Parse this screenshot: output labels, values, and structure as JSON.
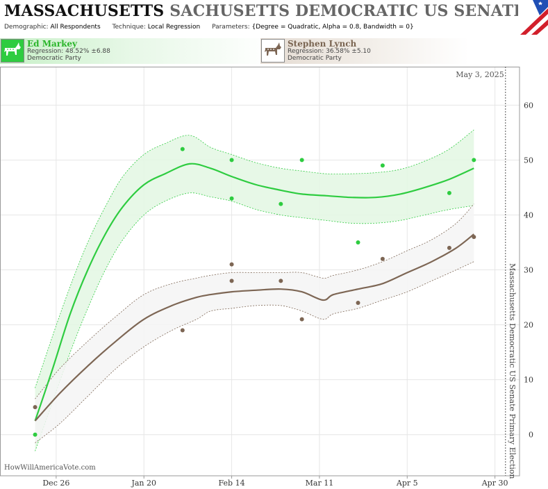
{
  "header": {
    "title_part1": "MASSACHUSETTS",
    "title_part2": "SACHUSETTS DEMOCRATIC US SENATE PRIM",
    "meta": {
      "demographic_label": "Demographic:",
      "demographic_value": "All Respondents",
      "technique_label": "Technique:",
      "technique_value": "Local Regression",
      "parameters_label": "Parameters:",
      "parameters_value": "{Degree = Quadratic, Alpha = 0.8, Bandwidth = 0}"
    }
  },
  "candidates": [
    {
      "name": "Ed Markey",
      "regression": "Regression: 48.52% ±6.88",
      "party": "Democratic Party",
      "color": "#2ecc40",
      "icon": "donkey-icon"
    },
    {
      "name": "Stephen Lynch",
      "regression": "Regression: 36.58% ±5.10",
      "party": "Democratic Party",
      "color": "#7d6654",
      "icon": "donkey-icon"
    }
  ],
  "footer": {
    "site": "HowWillAmericaVote.com"
  },
  "chart_data": {
    "type": "scatter",
    "date_label": "May 3, 2025",
    "right_axis_label": "Massachusetts Democratic US Senate Primary Election",
    "x_ticks": [
      {
        "label": "Dec 26",
        "date": "2024-12-26"
      },
      {
        "label": "Jan 20",
        "date": "2025-01-20"
      },
      {
        "label": "Feb 14",
        "date": "2025-02-14"
      },
      {
        "label": "Mar 11",
        "date": "2025-03-11"
      },
      {
        "label": "Apr 5",
        "date": "2025-04-05"
      },
      {
        "label": "Apr 30",
        "date": "2025-04-30"
      }
    ],
    "x_range": [
      "2024-12-10",
      "2025-05-07"
    ],
    "election_date": "2025-05-03",
    "y_ticks": [
      0,
      10,
      20,
      30,
      40,
      50,
      60
    ],
    "ylim": [
      -7.5,
      67
    ],
    "grid": true,
    "series": [
      {
        "name": "Ed Markey",
        "color": "#2ecc40",
        "band_color": "#e3f7e3",
        "points": [
          {
            "x": "2024-12-20",
            "y": 0
          },
          {
            "x": "2025-01-31",
            "y": 52
          },
          {
            "x": "2025-02-14",
            "y": 50
          },
          {
            "x": "2025-02-14",
            "y": 43
          },
          {
            "x": "2025-02-28",
            "y": 42
          },
          {
            "x": "2025-03-06",
            "y": 50
          },
          {
            "x": "2025-03-22",
            "y": 35
          },
          {
            "x": "2025-03-29",
            "y": 49
          },
          {
            "x": "2025-04-17",
            "y": 44
          },
          {
            "x": "2025-04-24",
            "y": 50
          }
        ],
        "trend": [
          {
            "x": "2024-12-20",
            "y": 2.5,
            "lo": -3,
            "hi": 8.5
          },
          {
            "x": "2024-12-25",
            "y": 12,
            "lo": 6,
            "hi": 18
          },
          {
            "x": "2024-12-30",
            "y": 22,
            "lo": 15,
            "hi": 27
          },
          {
            "x": "2025-01-04",
            "y": 30,
            "lo": 23,
            "hi": 35
          },
          {
            "x": "2025-01-09",
            "y": 36.5,
            "lo": 30,
            "hi": 41.5
          },
          {
            "x": "2025-01-14",
            "y": 41.5,
            "lo": 35.5,
            "hi": 47
          },
          {
            "x": "2025-01-20",
            "y": 45.5,
            "lo": 40,
            "hi": 51
          },
          {
            "x": "2025-01-26",
            "y": 47.5,
            "lo": 42.5,
            "hi": 53
          },
          {
            "x": "2025-02-02",
            "y": 49.3,
            "lo": 44,
            "hi": 54.5
          },
          {
            "x": "2025-02-08",
            "y": 48.5,
            "lo": 43.3,
            "hi": 52.3
          },
          {
            "x": "2025-02-14",
            "y": 47,
            "lo": 42.5,
            "hi": 51
          },
          {
            "x": "2025-02-21",
            "y": 45.5,
            "lo": 41,
            "hi": 49.5
          },
          {
            "x": "2025-02-28",
            "y": 44.5,
            "lo": 40,
            "hi": 48.5
          },
          {
            "x": "2025-03-06",
            "y": 43.8,
            "lo": 39.5,
            "hi": 48
          },
          {
            "x": "2025-03-13",
            "y": 43.5,
            "lo": 39,
            "hi": 47.5
          },
          {
            "x": "2025-03-20",
            "y": 43.2,
            "lo": 38.5,
            "hi": 47.5
          },
          {
            "x": "2025-03-27",
            "y": 43.2,
            "lo": 38.5,
            "hi": 47.7
          },
          {
            "x": "2025-04-03",
            "y": 43.8,
            "lo": 39,
            "hi": 48.3
          },
          {
            "x": "2025-04-10",
            "y": 45,
            "lo": 40,
            "hi": 49.8
          },
          {
            "x": "2025-04-17",
            "y": 46.5,
            "lo": 41,
            "hi": 52
          },
          {
            "x": "2025-04-24",
            "y": 48.5,
            "lo": 41.7,
            "hi": 55.5
          }
        ]
      },
      {
        "name": "Stephen Lynch",
        "color": "#7d6654",
        "band_color": "#f4f4f4",
        "points": [
          {
            "x": "2024-12-20",
            "y": 5
          },
          {
            "x": "2025-01-31",
            "y": 19
          },
          {
            "x": "2025-02-14",
            "y": 31
          },
          {
            "x": "2025-02-14",
            "y": 28
          },
          {
            "x": "2025-02-28",
            "y": 28
          },
          {
            "x": "2025-03-06",
            "y": 21
          },
          {
            "x": "2025-03-22",
            "y": 24
          },
          {
            "x": "2025-03-29",
            "y": 32
          },
          {
            "x": "2025-04-17",
            "y": 34
          },
          {
            "x": "2025-04-24",
            "y": 36
          }
        ],
        "trend": [
          {
            "x": "2024-12-20",
            "y": 2.5,
            "lo": -1.5,
            "hi": 6.5
          },
          {
            "x": "2024-12-27",
            "y": 7.5,
            "lo": 2,
            "hi": 12
          },
          {
            "x": "2025-01-04",
            "y": 12.5,
            "lo": 7,
            "hi": 17
          },
          {
            "x": "2025-01-12",
            "y": 17,
            "lo": 12,
            "hi": 21.5
          },
          {
            "x": "2025-01-20",
            "y": 21,
            "lo": 16,
            "hi": 25.5
          },
          {
            "x": "2025-01-28",
            "y": 23.5,
            "lo": 19,
            "hi": 27.5
          },
          {
            "x": "2025-02-04",
            "y": 25,
            "lo": 21,
            "hi": 28.5
          },
          {
            "x": "2025-02-08",
            "y": 25.5,
            "lo": 22.5,
            "hi": 29
          },
          {
            "x": "2025-02-14",
            "y": 26,
            "lo": 23,
            "hi": 29.5
          },
          {
            "x": "2025-02-21",
            "y": 26.3,
            "lo": 23.5,
            "hi": 29.5
          },
          {
            "x": "2025-02-28",
            "y": 26.5,
            "lo": 23.5,
            "hi": 29.5
          },
          {
            "x": "2025-03-06",
            "y": 26,
            "lo": 22.5,
            "hi": 29.5
          },
          {
            "x": "2025-03-12",
            "y": 24.5,
            "lo": 21,
            "hi": 28.5
          },
          {
            "x": "2025-03-15",
            "y": 25.5,
            "lo": 22,
            "hi": 29
          },
          {
            "x": "2025-03-22",
            "y": 26.5,
            "lo": 23,
            "hi": 30
          },
          {
            "x": "2025-03-29",
            "y": 27.5,
            "lo": 24.5,
            "hi": 31.5
          },
          {
            "x": "2025-04-05",
            "y": 29.5,
            "lo": 26,
            "hi": 33.5
          },
          {
            "x": "2025-04-12",
            "y": 31.5,
            "lo": 28,
            "hi": 35.5
          },
          {
            "x": "2025-04-19",
            "y": 34,
            "lo": 30,
            "hi": 38.5
          },
          {
            "x": "2025-04-24",
            "y": 36.5,
            "lo": 31.5,
            "hi": 42
          }
        ]
      }
    ]
  }
}
